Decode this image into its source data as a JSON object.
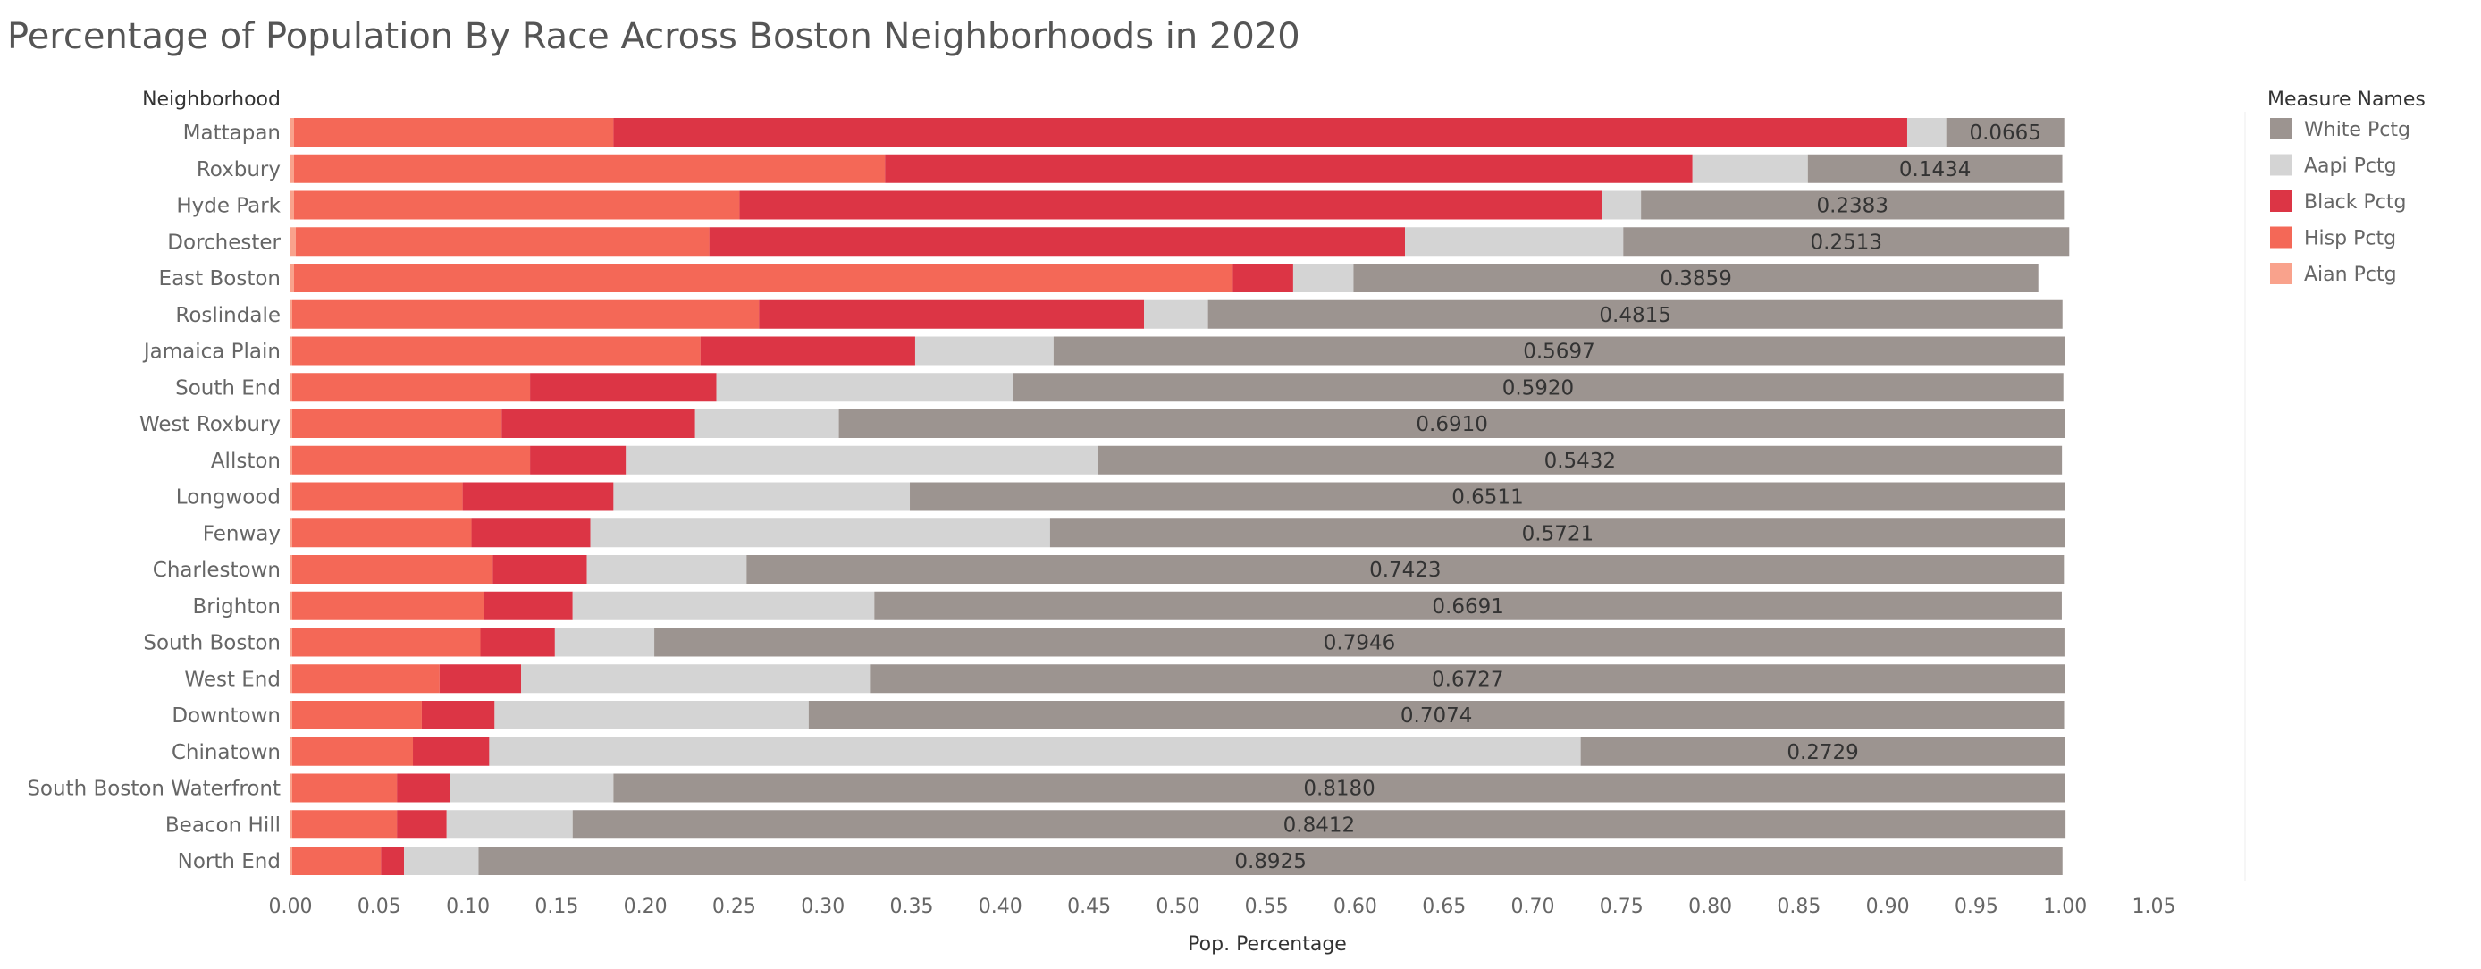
{
  "chart_data": {
    "type": "bar",
    "orientation": "horizontal",
    "stacked": true,
    "title": "Percentage of Population By Race Across Boston Neighborhoods in 2020",
    "row_header": "Neighborhood",
    "xlabel": "Pop. Percentage",
    "xlim": [
      0,
      1.05
    ],
    "xticks": [
      "0.00",
      "0.05",
      "0.10",
      "0.15",
      "0.20",
      "0.25",
      "0.30",
      "0.35",
      "0.40",
      "0.45",
      "0.50",
      "0.55",
      "0.60",
      "0.65",
      "0.70",
      "0.75",
      "0.80",
      "0.85",
      "0.90",
      "0.95",
      "1.00",
      "1.05"
    ],
    "grid": false,
    "legend_position": "right",
    "legend_title": "Measure Names",
    "legend": [
      {
        "name": "White Pctg",
        "color": "#9c9490"
      },
      {
        "name": "Aapi Pctg",
        "color": "#d4d4d4"
      },
      {
        "name": "Black Pctg",
        "color": "#dc3545"
      },
      {
        "name": "Hisp Pctg",
        "color": "#f46857"
      },
      {
        "name": "Aian Pctg",
        "color": "#f9a28c"
      }
    ],
    "stack_order": [
      "Aian Pctg",
      "Hisp Pctg",
      "Black Pctg",
      "Aapi Pctg",
      "White Pctg"
    ],
    "categories": [
      "Mattapan",
      "Roxbury",
      "Hyde Park",
      "Dorchester",
      "East Boston",
      "Roslindale",
      "Jamaica Plain",
      "South End",
      "West Roxbury",
      "Allston",
      "Longwood",
      "Fenway",
      "Charlestown",
      "Brighton",
      "South Boston",
      "West End",
      "Downtown",
      "Chinatown",
      "South Boston Waterfront",
      "Beacon Hill",
      "North End"
    ],
    "series": [
      {
        "name": "Aian Pctg",
        "color": "#f9a28c",
        "values": [
          0.002,
          0.002,
          0.002,
          0.003,
          0.002,
          0.001,
          0.001,
          0.001,
          0.001,
          0.001,
          0.001,
          0.001,
          0.001,
          0.001,
          0.001,
          0.001,
          0.001,
          0.001,
          0.001,
          0.001,
          0.001
        ]
      },
      {
        "name": "Hisp Pctg",
        "color": "#f46857",
        "values": [
          0.18,
          0.333,
          0.251,
          0.233,
          0.529,
          0.263,
          0.23,
          0.134,
          0.118,
          0.134,
          0.096,
          0.101,
          0.113,
          0.108,
          0.106,
          0.083,
          0.073,
          0.068,
          0.059,
          0.059,
          0.05
        ]
      },
      {
        "name": "Black Pctg",
        "color": "#dc3545",
        "values": [
          0.729,
          0.455,
          0.486,
          0.392,
          0.034,
          0.217,
          0.121,
          0.105,
          0.109,
          0.054,
          0.085,
          0.067,
          0.053,
          0.05,
          0.042,
          0.046,
          0.041,
          0.043,
          0.03,
          0.028,
          0.013
        ]
      },
      {
        "name": "Aapi Pctg",
        "color": "#d4d4d4",
        "values": [
          0.022,
          0.065,
          0.022,
          0.123,
          0.034,
          0.036,
          0.078,
          0.167,
          0.081,
          0.266,
          0.167,
          0.259,
          0.09,
          0.17,
          0.056,
          0.197,
          0.177,
          0.615,
          0.092,
          0.071,
          0.042
        ]
      },
      {
        "name": "White Pctg",
        "color": "#9c9490",
        "values": [
          0.0665,
          0.1434,
          0.2383,
          0.2513,
          0.3859,
          0.4815,
          0.5697,
          0.592,
          0.691,
          0.5432,
          0.6511,
          0.5721,
          0.7423,
          0.6691,
          0.7946,
          0.6727,
          0.7074,
          0.2729,
          0.818,
          0.8412,
          0.8925
        ]
      }
    ],
    "data_labels": [
      "0.0665",
      "0.1434",
      "0.2383",
      "0.2513",
      "0.3859",
      "0.4815",
      "0.5697",
      "0.5920",
      "0.6910",
      "0.5432",
      "0.6511",
      "0.5721",
      "0.7423",
      "0.6691",
      "0.7946",
      "0.6727",
      "0.7074",
      "0.2729",
      "0.8180",
      "0.8412",
      "0.8925"
    ]
  }
}
